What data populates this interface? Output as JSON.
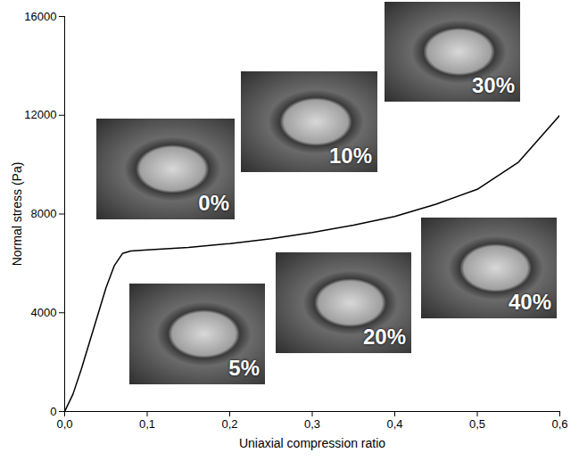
{
  "chart_data": {
    "type": "line",
    "x_label": "Uniaxial compression ratio",
    "y_label": "Normal stress (Pa)",
    "x": [
      0.0,
      0.01,
      0.02,
      0.03,
      0.04,
      0.05,
      0.06,
      0.07,
      0.08,
      0.1,
      0.15,
      0.2,
      0.25,
      0.3,
      0.35,
      0.4,
      0.45,
      0.5,
      0.55,
      0.6
    ],
    "values": [
      0,
      700,
      1700,
      2800,
      3900,
      5000,
      5900,
      6400,
      6500,
      6550,
      6650,
      6800,
      7000,
      7250,
      7550,
      7900,
      8400,
      9000,
      10100,
      12000
    ],
    "color": "#000000",
    "xlim": [
      0,
      0.6
    ],
    "xticks": [
      {
        "value": 0,
        "label": "0,0"
      },
      {
        "value": 0.1,
        "label": "0,1"
      },
      {
        "value": 0.2,
        "label": "0,2"
      },
      {
        "value": 0.3,
        "label": "0,3"
      },
      {
        "value": 0.4,
        "label": "0,4"
      },
      {
        "value": 0.5,
        "label": "0,5"
      },
      {
        "value": 0.6,
        "label": "0,6"
      }
    ],
    "ylim": [
      0,
      16000
    ],
    "yticks": [
      0,
      4000,
      8000,
      12000,
      16000
    ],
    "grid": false,
    "annotations": [
      "0%",
      "5%",
      "10%",
      "20%",
      "30%",
      "40%"
    ]
  }
}
